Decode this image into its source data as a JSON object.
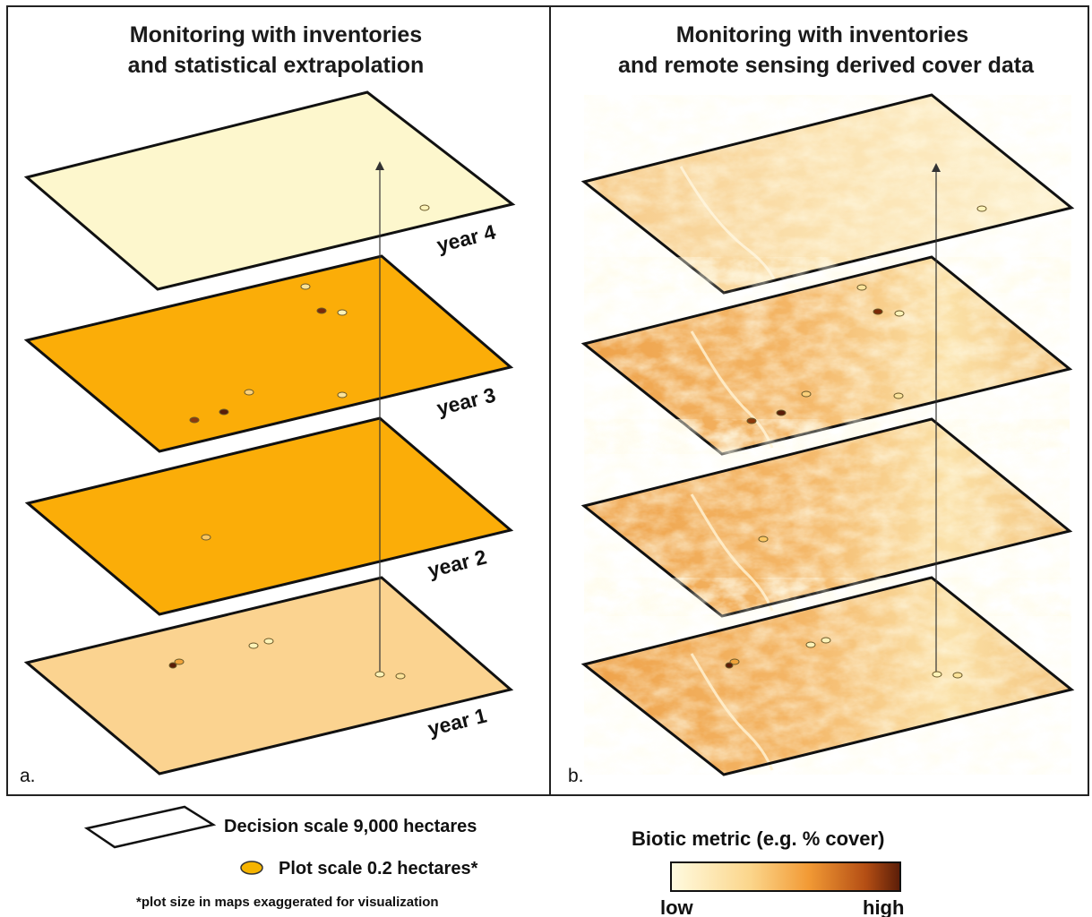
{
  "panels": {
    "a": {
      "title_line1": "Monitoring with inventories",
      "title_line2": "and statistical extrapolation",
      "label": "a.",
      "layers": [
        {
          "year": "year 4",
          "fill": "#fdf7cd"
        },
        {
          "year": "year 3",
          "fill": "#fbad08"
        },
        {
          "year": "year 2",
          "fill": "#fbad08"
        },
        {
          "year": "year 1",
          "fill": "#fbd390"
        }
      ]
    },
    "b": {
      "title_line1": "Monitoring with inventories",
      "title_line2": "and remote sensing derived cover data",
      "label": "b."
    }
  },
  "legend": {
    "decision_scale": "Decision scale 9,000 hectares",
    "plot_scale": "Plot scale 0.2 hectares*",
    "footnote": "*plot size in maps exaggerated for visualization",
    "biotic_title": "Biotic metric (e.g. % cover)",
    "low": "low",
    "high": "high"
  },
  "colors": {
    "ramp_low": "#fffbe0",
    "ramp_mid": "#f6a23a",
    "ramp_high": "#5a1d08",
    "plot_fill": "#f6b400"
  }
}
